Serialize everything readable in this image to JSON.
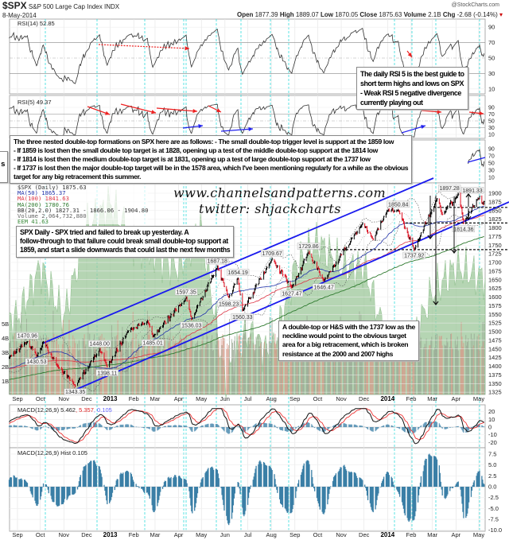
{
  "header": {
    "symbol": "$SPX",
    "name": "S&P 500 Large Cap Index",
    "exchange": "INDX",
    "date": "8-May-2014",
    "brand": "@StockCharts.com",
    "open_label": "Open",
    "open": "1877.39",
    "high_label": "High",
    "high": "1889.07",
    "low_label": "Low",
    "low": "1870.05",
    "close_label": "Close",
    "close": "1875.63",
    "volume_label": "Volume",
    "volume": "2.1B",
    "chg_label": "Chg",
    "chg": "-2.68 (-0.14%)",
    "chg_icon": "down-triangle-icon"
  },
  "panels": {
    "rsi14_label": "RSI(14) 52.85",
    "rsi5_label": "RSI(5) 49.37",
    "legend": {
      "price": "$SPX (Daily) 1875.63",
      "ma50": "MA(50) 1865.37",
      "ma100": "MA(100) 1841.63",
      "ma200": "MA(200) 1780.76",
      "bb": "BB(20,2.0) 1827.31 - 1866.06 - 1904.80",
      "volume": "Volume 2,064,732,880",
      "eem": "EEM 41.63"
    },
    "macd_label": "MACD(12,26,9) 5.462",
    "macd_signal": ", 5.357",
    "macd_hist_val": ", 0.105",
    "hist_label": "MACD(12,26,9) Hist 0.105"
  },
  "colors": {
    "ma50": "#2233aa",
    "ma100": "#dd3344",
    "ma200": "#2f7a2f",
    "channel": "#1a1aee",
    "eem": "#9cc79a",
    "macd_hist": "#3a7fa6",
    "up_bar": "#000000",
    "down_bar": "#dd1122",
    "gridline_cyan": "#33dddd"
  },
  "watermark": {
    "site": "www.channelsandpatterns.com",
    "twitter": "twitter: shjackcharts"
  },
  "annotations": {
    "rsi_note": [
      "The daily RSI 5 is the best guide to",
      "short term highs and lows on SPX",
      "- Weak RSI 5 negative divergence",
      "currently playing out"
    ],
    "double_top_note": [
      "The three nested double-top formations on SPX here are as follows: - The small double-top trigger level is support at the 1859 low",
      "- If 1859 is lost then the small double top target is at 1828, opening up a test of the middle double-top support at the 1814 low",
      "- If 1814 is lost then the medium double-top target is at 1831, opening up a test of large double-top support at the 1737 low",
      "- If 1737 is lost then the major double-top target will be in the 1578 area, which I've been mentioning regularly for a while as the obvious",
      "target for any big retracement this summer."
    ],
    "left_cut_box": "s",
    "spx_daily_note": [
      "SPX Daily - SPX tried and failed to break up yesterday. A",
      "follow-through to that failure could break small double-top support at",
      "1859, and start a slide downwards that could last the next few months"
    ],
    "hs_note": [
      "A double-top or H&S with the 1737 low as the",
      "neckline would point to the obvious target",
      "area for a big retracement, which is broken",
      "resistance at the 2000 and 2007 highs"
    ]
  },
  "chart_data": {
    "type": "ohlc",
    "x_range": [
      "2012-08-21",
      "2014-05-08"
    ],
    "x_tick_labels": [
      {
        "date": "2012-09-01",
        "label": "Sep"
      },
      {
        "date": "2012-10-01",
        "label": "Oct"
      },
      {
        "date": "2012-11-01",
        "label": "Nov"
      },
      {
        "date": "2012-12-01",
        "label": "Dec"
      },
      {
        "date": "2013-01-01",
        "label": "2013",
        "bold": true
      },
      {
        "date": "2013-02-01",
        "label": "Feb"
      },
      {
        "date": "2013-03-01",
        "label": "Mar"
      },
      {
        "date": "2013-04-01",
        "label": "Apr"
      },
      {
        "date": "2013-05-01",
        "label": "May"
      },
      {
        "date": "2013-06-01",
        "label": "Jun"
      },
      {
        "date": "2013-07-01",
        "label": "Jul"
      },
      {
        "date": "2013-08-01",
        "label": "Aug"
      },
      {
        "date": "2013-09-01",
        "label": "Sep"
      },
      {
        "date": "2013-10-01",
        "label": "Oct"
      },
      {
        "date": "2013-11-01",
        "label": "Nov"
      },
      {
        "date": "2013-12-01",
        "label": "Dec"
      },
      {
        "date": "2014-01-01",
        "label": "2014",
        "bold": true
      },
      {
        "date": "2014-02-01",
        "label": "Feb"
      },
      {
        "date": "2014-03-01",
        "label": "Mar"
      },
      {
        "date": "2014-04-01",
        "label": "Apr"
      },
      {
        "date": "2014-05-01",
        "label": "May"
      }
    ],
    "price_ylim": [
      1325,
      1900
    ],
    "price_ticks": [
      "1900",
      "1875",
      "1850",
      "1825",
      "1800",
      "1775",
      "1750",
      "1725",
      "1700",
      "1675",
      "1650",
      "1625",
      "1600",
      "1575",
      "1550",
      "1525",
      "1500",
      "1475",
      "1450",
      "1425",
      "1400",
      "1375",
      "1350",
      "1325"
    ],
    "volume_ticks": [
      "5B",
      "4B",
      "3B",
      "2B",
      "1B"
    ],
    "rsi_ticks": [
      "90",
      "70",
      "50",
      "30",
      "10"
    ],
    "macd_ticks": [
      "20",
      "10",
      "0",
      "-10",
      "-20"
    ],
    "hist_ticks": [
      "7.5",
      "5.0",
      "2.5",
      "0.0",
      "-2.5",
      "-5.0",
      "-7.5",
      "-10.0"
    ],
    "swings": [
      {
        "date": "2012-08-21",
        "value": 1426
      },
      {
        "date": "2012-09-14",
        "value": 1470.96,
        "label": "1470.96"
      },
      {
        "date": "2012-09-26",
        "value": 1430.53,
        "label": "1430.53"
      },
      {
        "date": "2012-10-05",
        "value": 1470
      },
      {
        "date": "2012-10-23",
        "value": 1403
      },
      {
        "date": "2012-11-16",
        "value": 1343.35,
        "label": "1343.35"
      },
      {
        "date": "2012-12-18",
        "value": 1448.0,
        "label": "1448.00"
      },
      {
        "date": "2012-12-28",
        "value": 1398.11,
        "label": "1398.11"
      },
      {
        "date": "2013-01-25",
        "value": 1503
      },
      {
        "date": "2013-02-19",
        "value": 1530
      },
      {
        "date": "2013-02-26",
        "value": 1485.01,
        "label": "1485.01"
      },
      {
        "date": "2013-04-11",
        "value": 1597.35,
        "label": "1597.35"
      },
      {
        "date": "2013-04-18",
        "value": 1536.03,
        "label": "1536.03"
      },
      {
        "date": "2013-05-22",
        "value": 1687.18,
        "label": "1687.18"
      },
      {
        "date": "2013-06-06",
        "value": 1598.23,
        "label": "1598.23"
      },
      {
        "date": "2013-06-18",
        "value": 1654.19,
        "label": "1654.19"
      },
      {
        "date": "2013-06-24",
        "value": 1560.33,
        "label": "1560.33"
      },
      {
        "date": "2013-08-02",
        "value": 1709.67,
        "label": "1709.67"
      },
      {
        "date": "2013-08-28",
        "value": 1627.47,
        "label": "1627.47"
      },
      {
        "date": "2013-09-19",
        "value": 1729.86,
        "label": "1729.86"
      },
      {
        "date": "2013-10-09",
        "value": 1646.47,
        "label": "1646.47"
      },
      {
        "date": "2013-11-29",
        "value": 1813
      },
      {
        "date": "2013-12-13",
        "value": 1767
      },
      {
        "date": "2013-12-31",
        "value": 1849
      },
      {
        "date": "2014-01-15",
        "value": 1850.84,
        "label": "1850.84"
      },
      {
        "date": "2014-02-05",
        "value": 1737.92,
        "label": "1737.92"
      },
      {
        "date": "2014-03-07",
        "value": 1883.97
      },
      {
        "date": "2014-03-14",
        "value": 1839
      },
      {
        "date": "2014-04-04",
        "value": 1897.28,
        "label": "1897.28"
      },
      {
        "date": "2014-04-11",
        "value": 1814.36,
        "label": "1814.36"
      },
      {
        "date": "2014-04-30",
        "value": 1885
      },
      {
        "date": "2014-05-02",
        "value": 1891.33,
        "label": "1891.33"
      },
      {
        "date": "2014-05-07",
        "value": 1868
      },
      {
        "date": "2014-05-08",
        "value": 1875.63
      }
    ],
    "support_levels": [
      1859,
      1814,
      1737
    ],
    "eem_monthly": [
      40,
      42,
      40,
      43.5,
      44.5,
      43,
      42.5,
      42,
      43.5,
      37.5,
      39.5,
      38.5,
      42,
      43,
      42,
      42,
      39,
      39,
      41,
      42,
      41.63
    ]
  }
}
